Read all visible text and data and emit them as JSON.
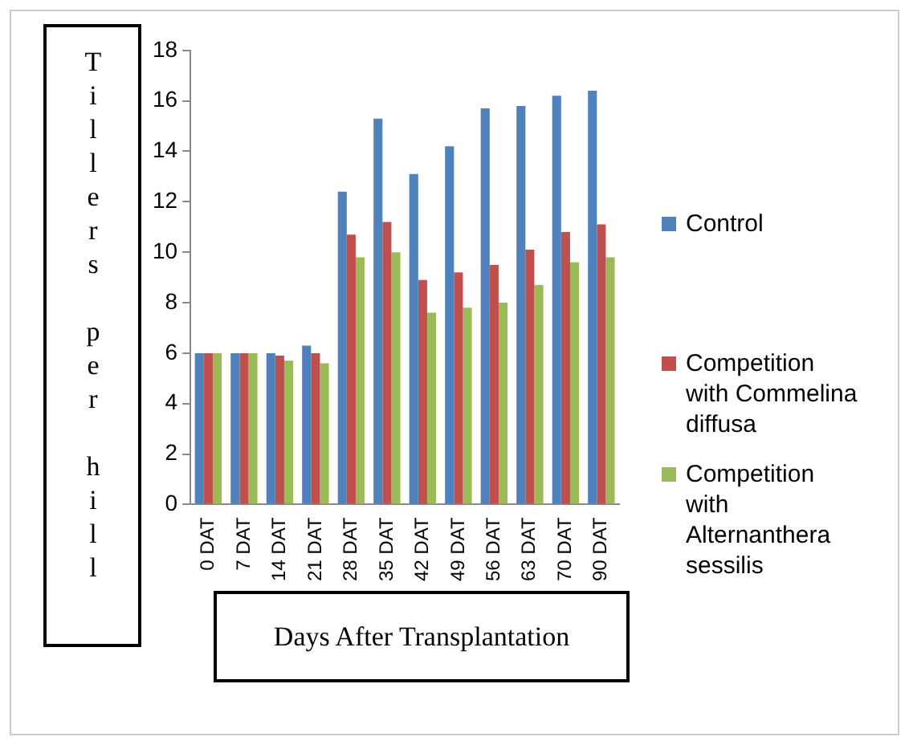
{
  "chart_data": {
    "type": "bar",
    "xlabel": "Days After Transplantation",
    "ylabel": "Tillers per hill",
    "categories": [
      "0 DAT",
      "7 DAT",
      "14 DAT",
      "21 DAT",
      "28 DAT",
      "35 DAT",
      "42 DAT",
      "49 DAT",
      "56 DAT",
      "63 DAT",
      "70 DAT",
      "90 DAT"
    ],
    "series": [
      {
        "name": "Control",
        "color": "#4f81bd",
        "values": [
          6,
          6,
          6,
          6.3,
          12.4,
          15.3,
          13.1,
          14.2,
          15.7,
          15.8,
          16.2,
          16.4
        ]
      },
      {
        "name": "Competition with Commelina diffusa",
        "color": "#c0504d",
        "values": [
          6,
          6,
          5.9,
          6,
          10.7,
          11.2,
          8.9,
          9.2,
          9.5,
          10.1,
          10.8,
          11.1
        ]
      },
      {
        "name": "Competition with Alternanthera sessilis",
        "color": "#9bbb59",
        "values": [
          6,
          6,
          5.7,
          5.6,
          9.8,
          10,
          7.6,
          7.8,
          8,
          8.7,
          9.6,
          9.8
        ]
      }
    ],
    "ylim": [
      0,
      18
    ],
    "yticks": [
      0,
      2,
      4,
      6,
      8,
      10,
      12,
      14,
      16,
      18
    ],
    "grid": false,
    "legend": "right"
  }
}
